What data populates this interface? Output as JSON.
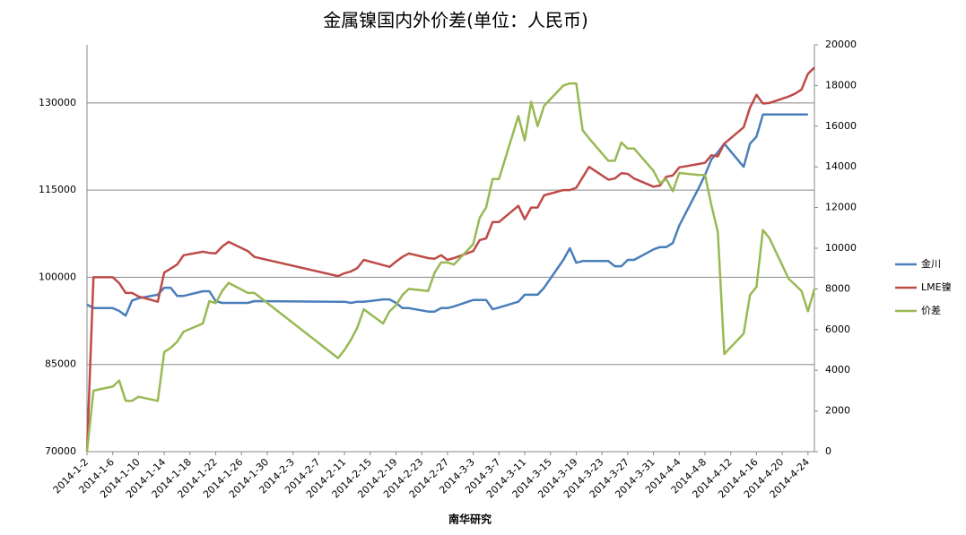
{
  "chart_data": {
    "type": "line",
    "title": "金属镍国内外价差(单位：人民币)",
    "xlabel": "南华研究",
    "x": [
      "2014-1-2",
      "2014-1-3",
      "2014-1-6",
      "2014-1-7",
      "2014-1-8",
      "2014-1-9",
      "2014-1-10",
      "2014-1-13",
      "2014-1-14",
      "2014-1-15",
      "2014-1-16",
      "2014-1-17",
      "2014-1-20",
      "2014-1-21",
      "2014-1-22",
      "2014-1-23",
      "2014-1-24",
      "2014-1-27",
      "2014-1-28",
      "2014-2-10",
      "2014-2-11",
      "2014-2-12",
      "2014-2-13",
      "2014-2-14",
      "2014-2-17",
      "2014-2-18",
      "2014-2-19",
      "2014-2-20",
      "2014-2-21",
      "2014-2-24",
      "2014-2-25",
      "2014-2-26",
      "2014-2-27",
      "2014-2-28",
      "2014-3-3",
      "2014-3-4",
      "2014-3-5",
      "2014-3-6",
      "2014-3-7",
      "2014-3-10",
      "2014-3-11",
      "2014-3-12",
      "2014-3-13",
      "2014-3-14",
      "2014-3-17",
      "2014-3-18",
      "2014-3-19",
      "2014-3-20",
      "2014-3-21",
      "2014-3-24",
      "2014-3-25",
      "2014-3-26",
      "2014-3-27",
      "2014-3-28",
      "2014-3-31",
      "2014-4-1",
      "2014-4-2",
      "2014-4-3",
      "2014-4-4",
      "2014-4-7",
      "2014-4-8",
      "2014-4-9",
      "2014-4-10",
      "2014-4-11",
      "2014-4-14",
      "2014-4-15",
      "2014-4-16",
      "2014-4-17",
      "2014-4-18",
      "2014-4-21",
      "2014-4-22",
      "2014-4-23",
      "2014-4-24",
      "2014-4-25"
    ],
    "series": [
      {
        "name": "金川",
        "color": "#4a7ebb",
        "values": [
          95300,
          94700,
          94700,
          94200,
          93400,
          96000,
          96400,
          97000,
          98200,
          98200,
          96800,
          96800,
          97600,
          97600,
          95900,
          95600,
          95600,
          95600,
          95900,
          95800,
          95800,
          95600,
          95800,
          95800,
          96200,
          96200,
          95600,
          94700,
          94700,
          94100,
          94100,
          94700,
          94700,
          95000,
          96100,
          96100,
          96100,
          94500,
          94800,
          95800,
          97000,
          97000,
          97000,
          98200,
          103000,
          105000,
          102500,
          102800,
          102800,
          102800,
          101900,
          101900,
          103000,
          103000,
          104800,
          105200,
          105200,
          105900,
          108900,
          115300,
          117600,
          120300,
          121500,
          123000,
          119000,
          123000,
          124200,
          128000,
          128000,
          128000,
          128000,
          128000,
          128000,
          null
        ]
      },
      {
        "name": "LME镍",
        "color": "#be4b48",
        "values": [
          70000,
          100000,
          100000,
          99000,
          97300,
          97300,
          96700,
          95800,
          100800,
          101500,
          102200,
          103800,
          104400,
          104200,
          104100,
          105300,
          106100,
          104500,
          103500,
          100200,
          100700,
          101000,
          101600,
          103000,
          102100,
          101800,
          102700,
          103500,
          104100,
          103300,
          103200,
          103800,
          103000,
          103300,
          104500,
          106400,
          106700,
          109500,
          109500,
          112300,
          110000,
          112000,
          112000,
          114100,
          115000,
          115000,
          115400,
          117200,
          119000,
          116800,
          117000,
          117900,
          117800,
          117000,
          115600,
          115800,
          117300,
          117500,
          118900,
          119500,
          119700,
          121000,
          120800,
          123000,
          125800,
          129200,
          131400,
          129900,
          130000,
          131100,
          131600,
          132300,
          135000,
          136100
        ]
      },
      {
        "name": "价差",
        "color": "#98b954",
        "axis": "y2",
        "values": [
          0,
          3000,
          3200,
          3500,
          2500,
          2500,
          2700,
          2500,
          4900,
          5100,
          5400,
          5900,
          6300,
          7400,
          7300,
          7900,
          8300,
          7800,
          7800,
          4600,
          5000,
          5500,
          6100,
          7000,
          6300,
          6900,
          7200,
          7700,
          8000,
          7900,
          8800,
          9300,
          9300,
          9200,
          10200,
          11500,
          12000,
          13400,
          13400,
          16500,
          15300,
          17200,
          16000,
          17000,
          18000,
          18100,
          18100,
          15800,
          15400,
          14300,
          14300,
          15200,
          14900,
          14900,
          13800,
          13200,
          13400,
          12800,
          13700,
          13600,
          13600,
          12100,
          10800,
          4800,
          5800,
          7700,
          8100,
          10900,
          10500,
          8500,
          8200,
          7900,
          6900,
          8000
        ]
      }
    ],
    "xlim": [
      "2014-1-2",
      "2014-4-25"
    ],
    "xticks": [
      "2014-1-2",
      "2014-1-6",
      "2014-1-10",
      "2014-1-14",
      "2014-1-18",
      "2014-1-22",
      "2014-1-26",
      "2014-1-30",
      "2014-2-3",
      "2014-2-7",
      "2014-2-11",
      "2014-2-15",
      "2014-2-19",
      "2014-2-23",
      "2014-2-27",
      "2014-3-3",
      "2014-3-7",
      "2014-3-11",
      "2014-3-15",
      "2014-3-19",
      "2014-3-23",
      "2014-3-27",
      "2014-3-31",
      "2014-4-4",
      "2014-4-8",
      "2014-4-12",
      "2014-4-16",
      "2014-4-20",
      "2014-4-24"
    ],
    "ylim": [
      70000,
      140000
    ],
    "yticks": [
      70000,
      85000,
      100000,
      115000,
      130000
    ],
    "y2lim": [
      0,
      20000
    ],
    "y2ticks": [
      0,
      2000,
      4000,
      6000,
      8000,
      10000,
      12000,
      14000,
      16000,
      18000,
      20000
    ],
    "grid": true,
    "legend": "right"
  }
}
